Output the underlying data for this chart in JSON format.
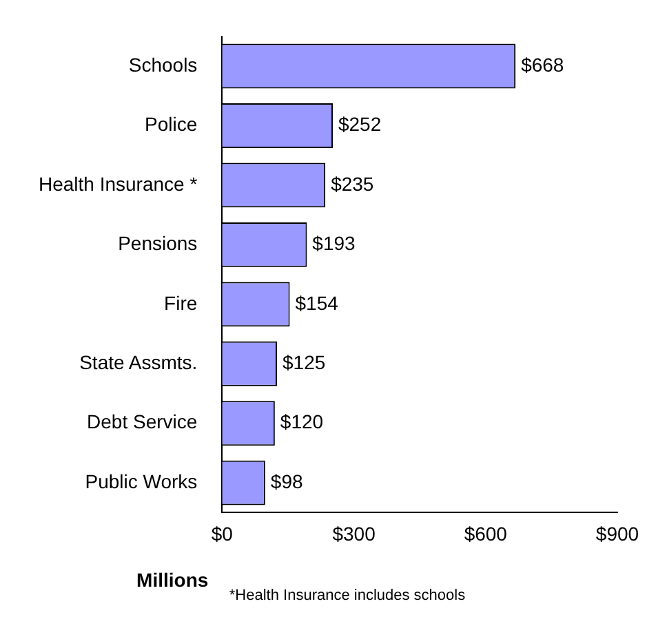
{
  "chart_data": {
    "type": "bar",
    "orientation": "horizontal",
    "categories": [
      "Schools",
      "Police",
      "Health Insurance *",
      "Pensions",
      "Fire",
      "State Assmts.",
      "Debt Service",
      "Public Works"
    ],
    "values": [
      668,
      252,
      235,
      193,
      154,
      125,
      120,
      98
    ],
    "value_labels": [
      "$668",
      "$252",
      "$235",
      "$193",
      "$154",
      "$125",
      "$120",
      "$98"
    ],
    "color": "#9999ff",
    "xlim": [
      0,
      900
    ],
    "xticks": [
      {
        "value": 0,
        "label": "$0"
      },
      {
        "value": 300,
        "label": "$300"
      },
      {
        "value": 600,
        "label": "$600"
      },
      {
        "value": 900,
        "label": "$900"
      }
    ],
    "xlabel": "Millions",
    "annotations": [
      "*Health Insurance includes schools"
    ],
    "grid": false,
    "legend": false
  }
}
